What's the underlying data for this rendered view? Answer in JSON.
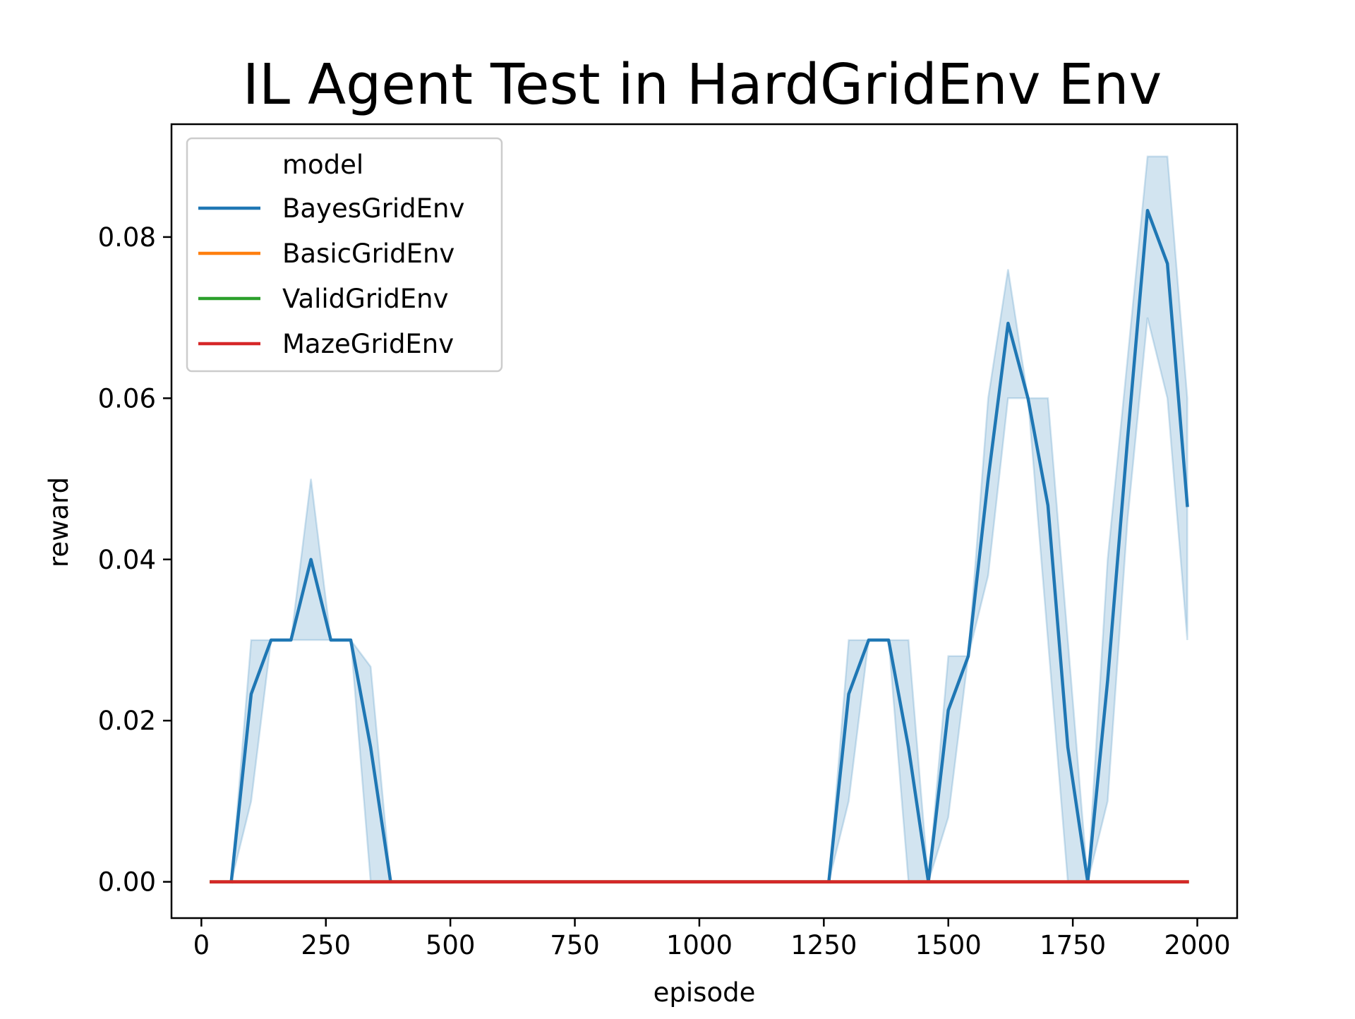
{
  "chart_data": {
    "type": "line",
    "title": "IL Agent Test in HardGridEnv Env",
    "xlabel": "episode",
    "ylabel": "reward",
    "xlim": [
      -60,
      2080
    ],
    "ylim": [
      -0.0045,
      0.094
    ],
    "xticks": [
      0,
      250,
      500,
      750,
      1000,
      1250,
      1500,
      1750,
      2000
    ],
    "xtick_labels": [
      "0",
      "250",
      "500",
      "750",
      "1000",
      "1250",
      "1500",
      "1750",
      "2000"
    ],
    "yticks": [
      0.0,
      0.02,
      0.04,
      0.06,
      0.08
    ],
    "ytick_labels": [
      "0.00",
      "0.02",
      "0.04",
      "0.06",
      "0.08"
    ],
    "grid": false,
    "legend": {
      "title": "model",
      "placement": "top-left",
      "entries": [
        "BayesGridEnv",
        "BasicGridEnv",
        "ValidGridEnv",
        "MazeGridEnv"
      ]
    },
    "x": [
      20,
      60,
      100,
      140,
      180,
      220,
      260,
      300,
      340,
      380,
      420,
      460,
      500,
      540,
      580,
      620,
      660,
      700,
      740,
      780,
      820,
      860,
      900,
      940,
      980,
      1020,
      1060,
      1100,
      1140,
      1180,
      1220,
      1260,
      1300,
      1340,
      1380,
      1420,
      1460,
      1500,
      1540,
      1580,
      1620,
      1660,
      1700,
      1740,
      1780,
      1820,
      1860,
      1900,
      1940,
      1980
    ],
    "series": [
      {
        "name": "BayesGridEnv",
        "color": "#1f77b4",
        "band_color": "#1f77b4",
        "start_index": 1,
        "values": [
          0,
          0,
          0.0233,
          0.03,
          0.03,
          0.04,
          0.03,
          0.03,
          0.0167,
          0,
          0,
          0,
          0,
          0,
          0,
          0,
          0,
          0,
          0,
          0,
          0,
          0,
          0,
          0,
          0,
          0,
          0,
          0,
          0,
          0,
          0,
          0,
          0.0233,
          0.03,
          0.03,
          0.0167,
          0,
          0.0213,
          0.028,
          0.05,
          0.0693,
          0.06,
          0.0467,
          0.0167,
          0,
          0.025,
          0.055,
          0.0833,
          0.0767,
          0.0467
        ],
        "lower": [
          0,
          0,
          0.01,
          0.03,
          0.03,
          0.03,
          0.03,
          0.03,
          0,
          0,
          0,
          0,
          0,
          0,
          0,
          0,
          0,
          0,
          0,
          0,
          0,
          0,
          0,
          0,
          0,
          0,
          0,
          0,
          0,
          0,
          0,
          0,
          0.01,
          0.03,
          0.03,
          0,
          0,
          0.008,
          0.028,
          0.038,
          0.06,
          0.06,
          0.03,
          0,
          0,
          0.01,
          0.045,
          0.07,
          0.06,
          0.03
        ],
        "upper": [
          0,
          0,
          0.03,
          0.03,
          0.03,
          0.05,
          0.03,
          0.03,
          0.0267,
          0,
          0,
          0,
          0,
          0,
          0,
          0,
          0,
          0,
          0,
          0,
          0,
          0,
          0,
          0,
          0,
          0,
          0,
          0,
          0,
          0,
          0,
          0,
          0.03,
          0.03,
          0.03,
          0.03,
          0,
          0.028,
          0.028,
          0.06,
          0.076,
          0.06,
          0.06,
          0.03,
          0,
          0.04,
          0.065,
          0.09,
          0.09,
          0.06
        ]
      },
      {
        "name": "BasicGridEnv",
        "color": "#ff7f0e",
        "values": [
          0,
          0,
          0,
          0,
          0,
          0,
          0,
          0,
          0,
          0,
          0,
          0,
          0,
          0,
          0,
          0,
          0,
          0,
          0,
          0,
          0,
          0,
          0,
          0,
          0,
          0,
          0,
          0,
          0,
          0,
          0,
          0,
          0,
          0,
          0,
          0,
          0,
          0,
          0,
          0,
          0,
          0,
          0,
          0,
          0,
          0,
          0,
          0,
          0,
          0
        ]
      },
      {
        "name": "ValidGridEnv",
        "color": "#2ca02c",
        "values": [
          0,
          0,
          0,
          0,
          0,
          0,
          0,
          0,
          0,
          0,
          0,
          0,
          0,
          0,
          0,
          0,
          0,
          0,
          0,
          0,
          0,
          0,
          0,
          0,
          0,
          0,
          0,
          0,
          0,
          0,
          0,
          0,
          0,
          0,
          0,
          0,
          0,
          0,
          0,
          0,
          0,
          0,
          0,
          0,
          0,
          0,
          0,
          0,
          0,
          0
        ]
      },
      {
        "name": "MazeGridEnv",
        "color": "#d62728",
        "values": [
          0,
          0,
          0,
          0,
          0,
          0,
          0,
          0,
          0,
          0,
          0,
          0,
          0,
          0,
          0,
          0,
          0,
          0,
          0,
          0,
          0,
          0,
          0,
          0,
          0,
          0,
          0,
          0,
          0,
          0,
          0,
          0,
          0,
          0,
          0,
          0,
          0,
          0,
          0,
          0,
          0,
          0,
          0,
          0,
          0,
          0,
          0,
          0,
          0,
          0
        ]
      }
    ]
  }
}
